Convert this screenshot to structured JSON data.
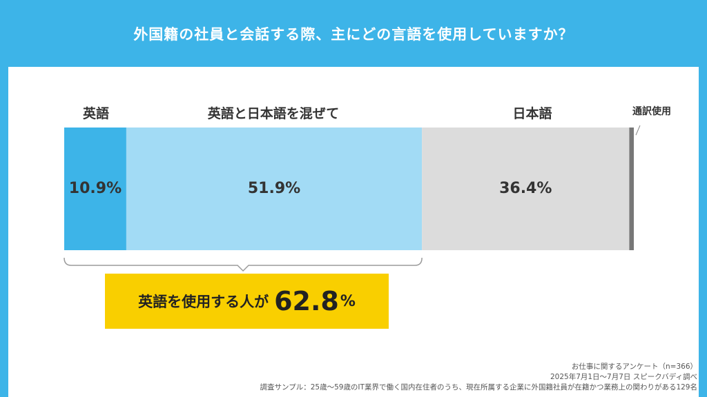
{
  "title": "外国籍の社員と会話する際、主にどの言語を使用していますか？",
  "colors": {
    "background": "#3db4e8",
    "english": "#3db4e8",
    "mixed": "#a2dbf5",
    "japanese": "#dcdcdc",
    "interpreter": "#777777",
    "callout": "#f9cf00"
  },
  "chart_data": {
    "type": "bar",
    "orientation": "horizontal-stacked-100%",
    "title": "外国籍の社員と会話する際、主にどの言語を使用していますか？",
    "categories": [
      "英語",
      "英語と日本語を混ぜて",
      "日本語",
      "通訳使用"
    ],
    "values": [
      10.9,
      51.9,
      36.4,
      0.8
    ],
    "value_labels": [
      "10.9%",
      "51.9%",
      "36.4%",
      ""
    ],
    "unit": "%",
    "xlim": [
      0,
      100
    ],
    "grid": false,
    "legend": "none"
  },
  "callout": {
    "lead": "英語を使用する人が",
    "value": "62.8",
    "unit": "%"
  },
  "footnotes": {
    "survey_name": "お仕事に関するアンケート（n=366）",
    "period": "2025年7月1日〜7月7日 スピークバディ調べ",
    "sample": "調査サンプル：25歳〜59歳のIT業界で働く国内在住者のうち、現在所属する企業に外国籍社員が在籍かつ業務上の関わりがある129名"
  }
}
